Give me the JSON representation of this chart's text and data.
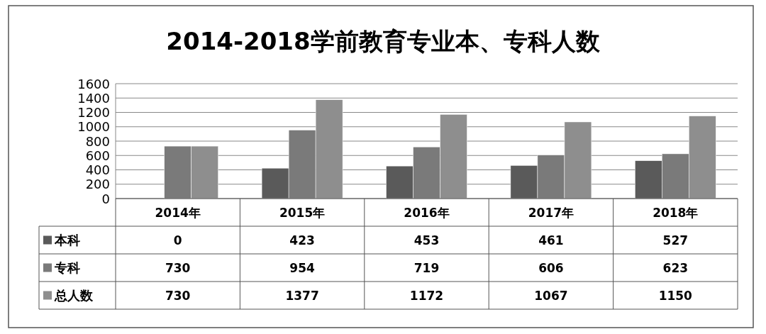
{
  "chart_data": {
    "type": "bar",
    "title": "2014-2018学前教育专业本、专科人数",
    "categories": [
      "2014年",
      "2015年",
      "2016年",
      "2017年",
      "2018年"
    ],
    "series": [
      {
        "name": "本科",
        "color": "#5a5a5a",
        "values": [
          0,
          423,
          453,
          461,
          527
        ]
      },
      {
        "name": "专科",
        "color": "#7a7a7a",
        "values": [
          730,
          954,
          719,
          606,
          623
        ]
      },
      {
        "name": "总人数",
        "color": "#8e8e8e",
        "values": [
          730,
          1377,
          1172,
          1067,
          1150
        ]
      }
    ],
    "ylim": [
      0,
      1600
    ],
    "yticks": [
      0,
      200,
      400,
      600,
      800,
      1000,
      1200,
      1400,
      1600
    ],
    "grid": "y",
    "legend": "bottom",
    "data_labels": true
  }
}
